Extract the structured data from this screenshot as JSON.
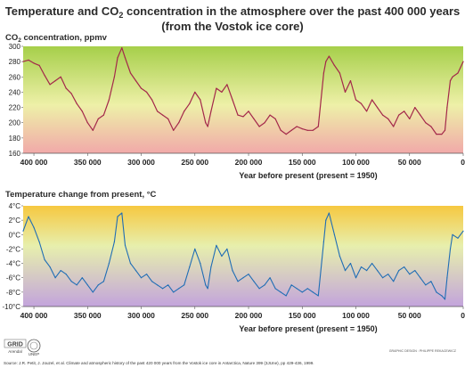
{
  "header": {
    "title_line1_part1": "Temperature and CO",
    "title_line1_sub": "2",
    "title_line1_part2": " concentration in the atmosphere over the past 400 000 years",
    "title_line2": "(from the Vostok ice core)"
  },
  "footer": {
    "logo_text": "GRID",
    "logo_sub": "Arendal",
    "logo2_text": "UNEP",
    "credit": "GRAPHIC DESIGN : PHILIPPE REKACEWICZ",
    "source": "Source: J.R. Petit, J. Jouzel, et al. Climate and atmospheric history of the past 420 000 years from the Vostok ice core in Antarctica, Nature 399 (3JUne), pp 429-436, 1999."
  },
  "colors": {
    "co2_line": "#a3284a",
    "temp_line": "#1f6db5",
    "co2_bg_top": "#a6cf4a",
    "co2_bg_mid": "#eef0a8",
    "co2_bg_bottom": "#f1a9a9",
    "temp_bg_top": "#f6c840",
    "temp_bg_mid": "#e7efad",
    "temp_bg_bottom": "#c3a4dc",
    "frame_border": "#666666"
  },
  "chart_data": [
    {
      "type": "line",
      "ylabel_pre": "CO",
      "ylabel_sub": "2",
      "ylabel_post": " concentration, ppmv",
      "xlabel": "Year before present (present = 1950)",
      "xlim": [
        410000,
        0
      ],
      "ylim": [
        160,
        300
      ],
      "xticks": [
        400000,
        350000,
        300000,
        250000,
        200000,
        150000,
        100000,
        50000,
        0
      ],
      "xtick_labels": [
        "400 000",
        "350 000",
        "300 000",
        "250 000",
        "200 000",
        "150 000",
        "100 000",
        "50 000",
        "0"
      ],
      "yticks": [
        160,
        180,
        200,
        220,
        240,
        260,
        280,
        300
      ],
      "ytick_labels": [
        "160",
        "180",
        "200",
        "220",
        "240",
        "260",
        "280",
        "300"
      ],
      "grid": false,
      "series": [
        {
          "x": [
            410000,
            405000,
            400000,
            395000,
            390000,
            385000,
            380000,
            375000,
            370000,
            365000,
            360000,
            355000,
            350000,
            345000,
            340000,
            335000,
            330000,
            325000,
            322000,
            318000,
            315000,
            310000,
            305000,
            300000,
            295000,
            290000,
            285000,
            280000,
            275000,
            270000,
            265000,
            260000,
            255000,
            250000,
            245000,
            240000,
            238000,
            235000,
            230000,
            225000,
            220000,
            215000,
            210000,
            205000,
            200000,
            195000,
            190000,
            185000,
            180000,
            175000,
            170000,
            165000,
            160000,
            155000,
            150000,
            145000,
            140000,
            135000,
            130000,
            128000,
            125000,
            120000,
            115000,
            110000,
            105000,
            100000,
            95000,
            90000,
            85000,
            80000,
            75000,
            70000,
            65000,
            60000,
            55000,
            50000,
            45000,
            40000,
            35000,
            30000,
            25000,
            20000,
            17000,
            15000,
            12000,
            10000,
            5000,
            0
          ],
          "y": [
            280,
            282,
            278,
            275,
            262,
            250,
            255,
            260,
            245,
            238,
            225,
            215,
            200,
            190,
            205,
            210,
            230,
            260,
            285,
            298,
            285,
            265,
            255,
            245,
            240,
            230,
            215,
            210,
            205,
            190,
            200,
            215,
            225,
            240,
            230,
            200,
            195,
            215,
            245,
            240,
            250,
            230,
            210,
            208,
            215,
            205,
            195,
            200,
            210,
            205,
            190,
            185,
            190,
            195,
            192,
            190,
            190,
            195,
            265,
            280,
            287,
            275,
            265,
            240,
            255,
            230,
            225,
            215,
            230,
            220,
            210,
            205,
            195,
            210,
            215,
            205,
            220,
            210,
            200,
            195,
            185,
            185,
            190,
            220,
            255,
            260,
            265,
            280
          ]
        }
      ]
    },
    {
      "type": "line",
      "ylabel": "Temperature change from present, °C",
      "xlabel": "Year before present (present = 1950)",
      "xlim": [
        410000,
        0
      ],
      "ylim": [
        -10,
        4
      ],
      "xticks": [
        400000,
        350000,
        300000,
        250000,
        200000,
        150000,
        100000,
        50000,
        0
      ],
      "xtick_labels": [
        "400 000",
        "350 000",
        "300 000",
        "250 000",
        "200 000",
        "150 000",
        "100 000",
        "50 000",
        "0"
      ],
      "yticks": [
        4,
        2,
        0,
        -2,
        -4,
        -6,
        -8,
        -10
      ],
      "ytick_labels": [
        "4°C",
        "2°C",
        "0°C",
        "-2°C",
        "-4°C",
        "-6°C",
        "-8°C",
        "-10°C"
      ],
      "grid": false,
      "series": [
        {
          "x": [
            410000,
            405000,
            400000,
            395000,
            390000,
            385000,
            380000,
            375000,
            370000,
            365000,
            360000,
            355000,
            350000,
            345000,
            340000,
            335000,
            330000,
            325000,
            322000,
            318000,
            315000,
            310000,
            305000,
            300000,
            295000,
            290000,
            285000,
            280000,
            275000,
            270000,
            265000,
            260000,
            255000,
            250000,
            245000,
            240000,
            238000,
            235000,
            230000,
            225000,
            220000,
            215000,
            210000,
            205000,
            200000,
            195000,
            190000,
            185000,
            180000,
            175000,
            170000,
            165000,
            160000,
            155000,
            150000,
            145000,
            140000,
            135000,
            130000,
            128000,
            125000,
            120000,
            115000,
            110000,
            105000,
            100000,
            95000,
            90000,
            85000,
            80000,
            75000,
            70000,
            65000,
            60000,
            55000,
            50000,
            45000,
            40000,
            35000,
            30000,
            25000,
            20000,
            17000,
            15000,
            12000,
            10000,
            5000,
            0
          ],
          "y": [
            0.5,
            2.5,
            1.0,
            -1.0,
            -3.5,
            -4.5,
            -6.0,
            -5.0,
            -5.5,
            -6.5,
            -7.0,
            -6.0,
            -7.0,
            -8.0,
            -7.0,
            -6.5,
            -4.0,
            -1.0,
            2.5,
            3.0,
            -1.5,
            -4.0,
            -5.0,
            -6.0,
            -5.5,
            -6.5,
            -7.0,
            -7.5,
            -7.0,
            -8.0,
            -7.5,
            -7.0,
            -4.5,
            -2.0,
            -4.0,
            -7.0,
            -7.5,
            -4.5,
            -1.5,
            -3.0,
            -2.0,
            -5.0,
            -6.5,
            -6.0,
            -5.5,
            -6.5,
            -7.5,
            -7.0,
            -6.0,
            -7.5,
            -8.0,
            -8.5,
            -7.0,
            -7.5,
            -8.0,
            -7.5,
            -8.0,
            -8.5,
            -1.0,
            2.0,
            3.0,
            0.0,
            -3.0,
            -5.0,
            -4.0,
            -6.0,
            -4.5,
            -5.0,
            -4.0,
            -5.0,
            -6.0,
            -5.5,
            -6.5,
            -5.0,
            -4.5,
            -5.5,
            -5.0,
            -6.0,
            -7.0,
            -6.5,
            -8.0,
            -8.5,
            -9.0,
            -6.0,
            -2.0,
            0.0,
            -0.5,
            0.5
          ]
        }
      ]
    }
  ]
}
